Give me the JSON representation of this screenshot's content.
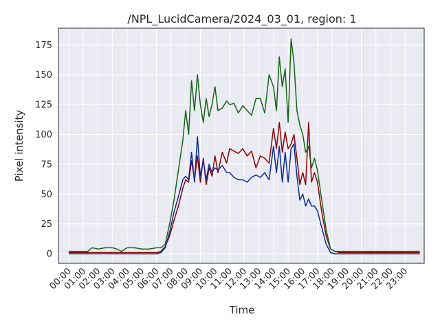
{
  "chart_data": {
    "type": "line",
    "title": "/NPL_LucidCamera/2024_03_01, region: 1",
    "xlabel": "Time",
    "ylabel": "Pixel intensity",
    "xlim": [
      -0.7,
      24.3
    ],
    "ylim": [
      -8,
      189
    ],
    "xticks": [
      "00:00",
      "01:00",
      "02:00",
      "03:00",
      "04:00",
      "05:00",
      "06:00",
      "07:00",
      "08:00",
      "09:00",
      "10:00",
      "11:00",
      "12:00",
      "13:00",
      "14:00",
      "15:00",
      "16:00",
      "17:00",
      "18:00",
      "19:00",
      "20:00",
      "21:00",
      "22:00",
      "23:00"
    ],
    "yticks": [
      0,
      25,
      50,
      75,
      100,
      125,
      150,
      175
    ],
    "grid": true,
    "series": [
      {
        "name": "",
        "color": "#8b0000",
        "x": [
          0,
          0.5,
          1,
          1.3,
          1.6,
          2,
          3,
          3.5,
          4,
          5,
          5.5,
          6,
          6.3,
          6.6,
          6.9,
          7.2,
          7.5,
          7.8,
          8,
          8.2,
          8.4,
          8.6,
          8.8,
          9,
          9.2,
          9.4,
          9.6,
          9.8,
          10,
          10.2,
          10.5,
          10.8,
          11,
          11.3,
          11.6,
          11.9,
          12.2,
          12.5,
          12.8,
          13.1,
          13.4,
          13.7,
          14,
          14.2,
          14.4,
          14.6,
          14.8,
          15,
          15.2,
          15.4,
          15.6,
          15.8,
          16,
          16.2,
          16.4,
          16.6,
          16.8,
          17,
          17.3,
          17.6,
          17.9,
          18.2,
          18.5,
          19,
          20,
          21,
          22,
          23,
          24
        ],
        "values": [
          1,
          1,
          1,
          1,
          1,
          1,
          1,
          1,
          1,
          1,
          1,
          1,
          2,
          6,
          15,
          28,
          40,
          55,
          62,
          60,
          78,
          62,
          82,
          60,
          80,
          58,
          72,
          65,
          82,
          68,
          85,
          76,
          88,
          86,
          84,
          88,
          82,
          86,
          72,
          82,
          80,
          76,
          105,
          88,
          110,
          85,
          102,
          88,
          92,
          100,
          80,
          58,
          68,
          58,
          110,
          60,
          68,
          60,
          35,
          15,
          4,
          2,
          1,
          1,
          1,
          1,
          1,
          1,
          1
        ]
      },
      {
        "name": "",
        "color": "#0b2a8f",
        "x": [
          0,
          0.5,
          1,
          1.3,
          1.6,
          2,
          3,
          3.5,
          4,
          5,
          5.5,
          6,
          6.3,
          6.6,
          6.9,
          7.2,
          7.5,
          7.8,
          8,
          8.2,
          8.4,
          8.6,
          8.8,
          9,
          9.2,
          9.4,
          9.6,
          9.8,
          10,
          10.2,
          10.5,
          10.8,
          11,
          11.3,
          11.6,
          11.9,
          12.2,
          12.5,
          12.8,
          13.1,
          13.4,
          13.7,
          14,
          14.2,
          14.4,
          14.6,
          14.8,
          15,
          15.2,
          15.4,
          15.6,
          15.8,
          16,
          16.2,
          16.4,
          16.6,
          16.8,
          17,
          17.3,
          17.6,
          17.9,
          18.2,
          18.5,
          19,
          20,
          21,
          22,
          23,
          24
        ],
        "values": [
          0,
          0,
          0,
          0,
          0,
          0,
          0,
          0,
          0,
          0,
          0,
          0,
          1,
          5,
          18,
          35,
          48,
          62,
          65,
          62,
          85,
          60,
          98,
          65,
          78,
          62,
          75,
          68,
          72,
          70,
          74,
          68,
          68,
          64,
          62,
          62,
          60,
          64,
          66,
          64,
          68,
          62,
          90,
          68,
          90,
          60,
          85,
          60,
          88,
          92,
          65,
          45,
          50,
          40,
          46,
          40,
          40,
          36,
          22,
          8,
          1,
          0,
          0,
          0,
          0,
          0,
          0,
          0,
          0
        ]
      },
      {
        "name": "",
        "color": "#136414",
        "x": [
          0,
          0.5,
          1,
          1.3,
          1.6,
          2,
          2.5,
          3,
          3.3,
          3.6,
          4,
          4.5,
          5,
          5.5,
          6,
          6.3,
          6.6,
          6.9,
          7.2,
          7.5,
          7.8,
          8,
          8.2,
          8.4,
          8.6,
          8.8,
          9,
          9.2,
          9.4,
          9.6,
          9.8,
          10,
          10.2,
          10.5,
          10.8,
          11,
          11.3,
          11.6,
          11.9,
          12.2,
          12.5,
          12.8,
          13.1,
          13.4,
          13.7,
          14,
          14.2,
          14.4,
          14.6,
          14.8,
          15,
          15.2,
          15.4,
          15.6,
          15.8,
          16,
          16.2,
          16.4,
          16.6,
          16.8,
          17,
          17.3,
          17.6,
          17.9,
          18.2,
          18.5,
          19,
          20,
          21,
          22,
          23,
          24
        ],
        "values": [
          2,
          2,
          2,
          2,
          5,
          4,
          5,
          5,
          4,
          2,
          5,
          5,
          4,
          4,
          5,
          5,
          8,
          25,
          45,
          70,
          95,
          120,
          100,
          145,
          120,
          150,
          125,
          110,
          130,
          115,
          125,
          140,
          120,
          122,
          128,
          125,
          126,
          118,
          124,
          120,
          116,
          130,
          130,
          118,
          150,
          140,
          120,
          165,
          140,
          155,
          110,
          180,
          160,
          120,
          108,
          100,
          85,
          90,
          72,
          80,
          70,
          45,
          20,
          4,
          2,
          2,
          2,
          2,
          2,
          2,
          2,
          2
        ]
      }
    ]
  }
}
